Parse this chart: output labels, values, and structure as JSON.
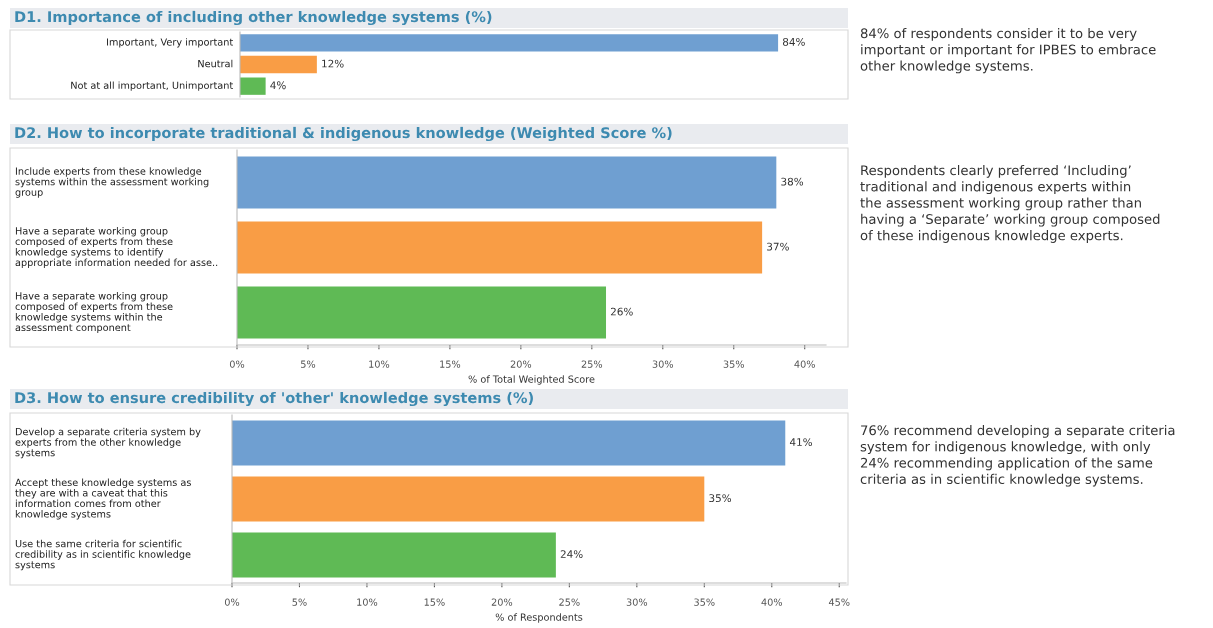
{
  "chart_data": [
    {
      "type": "bar",
      "orientation": "horizontal",
      "title": "D1. Importance of including other knowledge systems (%)",
      "categories": [
        "Important, Very important",
        "Neutral",
        "Not at all important, Unimportant"
      ],
      "values": [
        84,
        12,
        4
      ],
      "colors": [
        "#6f9fd1",
        "#f99d45",
        "#5fba55"
      ],
      "value_labels": [
        "84%",
        "12%",
        "4%"
      ],
      "tick_labels": "y",
      "grid": false,
      "annotations": [
        "84% of respondents consider it to be very important or important for IPBES to embrace other knowledge systems."
      ]
    },
    {
      "type": "bar",
      "orientation": "horizontal",
      "title": "D2. How to incorporate traditional & indigenous knowledge (Weighted Score %)",
      "xlabel": "% of Total Weighted Score",
      "categories": [
        "Include experts from these knowledge\nsystems within the assessment working\ngroup",
        "Have a separate working group\ncomposed of experts from these\nknowledge systems to identify\nappropriate information needed for asse..",
        "Have a separate working group\ncomposed of experts from these\nknowledge systems within the\nassessment component"
      ],
      "values": [
        38,
        37,
        26
      ],
      "colors": [
        "#6f9fd1",
        "#f99d45",
        "#5fba55"
      ],
      "value_labels": [
        "38%",
        "37%",
        "26%"
      ],
      "grid": false,
      "xlim": [
        0,
        41.5
      ],
      "xticks": [
        {
          "value": 0,
          "label": "0%"
        },
        {
          "value": 5,
          "label": "5%"
        },
        {
          "value": 10,
          "label": "10%"
        },
        {
          "value": 15,
          "label": "15%"
        },
        {
          "value": 20,
          "label": "20%"
        },
        {
          "value": 25,
          "label": "25%"
        },
        {
          "value": 30,
          "label": "30%"
        },
        {
          "value": 35,
          "label": "35%"
        },
        {
          "value": 40,
          "label": "40%"
        }
      ],
      "annotations": [
        "Respondents clearly preferred ‘Including’ traditional and indigenous experts within the assessment working group rather than having a ‘Separate’ working group composed of these indigenous knowledge experts."
      ]
    },
    {
      "type": "bar",
      "orientation": "horizontal",
      "title": "D3. How to ensure credibility of 'other' knowledge systems (%)",
      "xlabel": "% of Respondents",
      "categories": [
        "Develop a separate criteria system by\nexperts from the other knowledge\nsystems",
        "Accept these knowledge systems as\nthey are with a caveat that this\ninformation comes from other\nknowledge systems",
        "Use the same criteria for scientific\ncredibility as in scientific knowledge\nsystems"
      ],
      "values": [
        41,
        35,
        24
      ],
      "colors": [
        "#6f9fd1",
        "#f99d45",
        "#5fba55"
      ],
      "value_labels": [
        "41%",
        "35%",
        "24%"
      ],
      "grid": false,
      "xlim": [
        0,
        45.5
      ],
      "xticks": [
        {
          "value": 0,
          "label": "0%"
        },
        {
          "value": 5,
          "label": "5%"
        },
        {
          "value": 10,
          "label": "10%"
        },
        {
          "value": 15,
          "label": "15%"
        },
        {
          "value": 20,
          "label": "20%"
        },
        {
          "value": 25,
          "label": "25%"
        },
        {
          "value": 30,
          "label": "30%"
        },
        {
          "value": 35,
          "label": "35%"
        },
        {
          "value": 40,
          "label": "40%"
        },
        {
          "value": 45,
          "label": "45%"
        }
      ],
      "annotations": [
        "76% recommend developing a separate criteria system for indigenous knowledge, with only 24% recommending application of the same criteria as in scientific knowledge systems."
      ]
    }
  ]
}
